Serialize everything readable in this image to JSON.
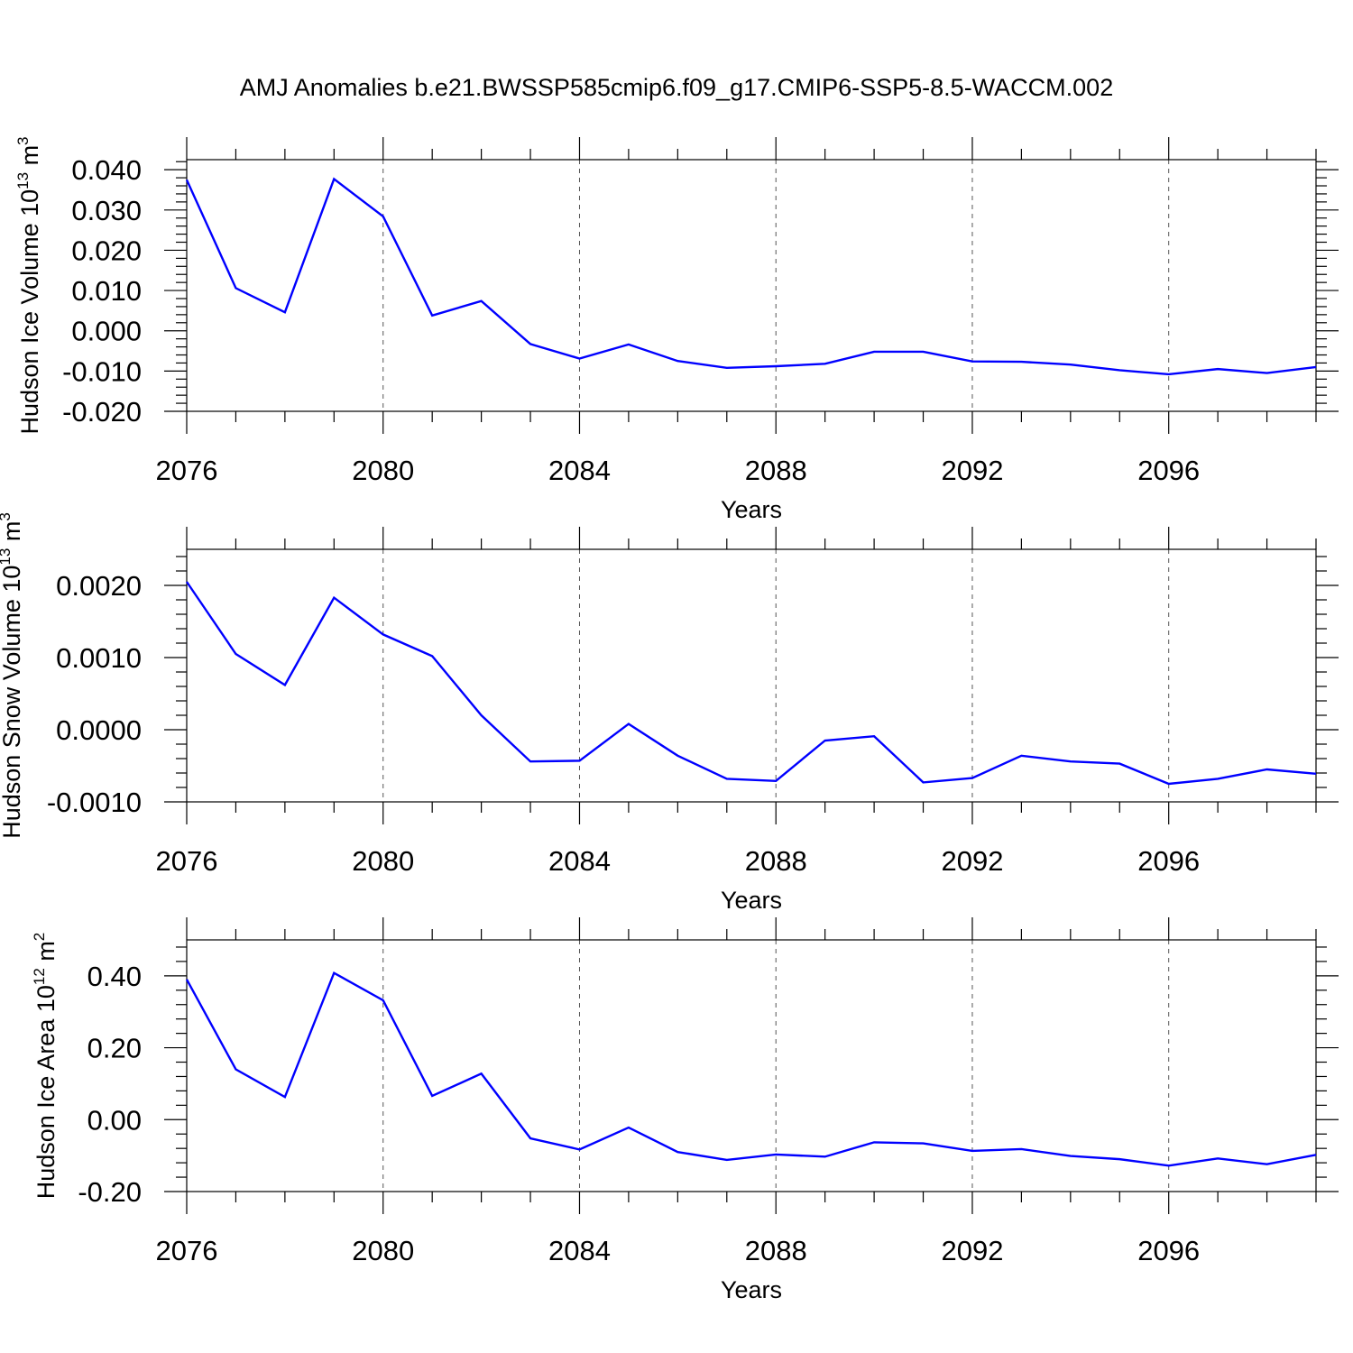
{
  "title": "AMJ Anomalies b.e21.BWSSP585cmip6.f09_g17.CMIP6-SSP5-8.5-WACCM.002",
  "colors": {
    "line": "#0000ff",
    "axis": "#000000",
    "grid": "#555555",
    "background": "#ffffff"
  },
  "chart_data": [
    {
      "type": "line",
      "name": "hudson-ice-volume",
      "ylabel": {
        "prefix": "Hudson Ice Volume 10",
        "exp": "13",
        "unit": " m",
        "unit_exp": "3"
      },
      "xlabel": "Years",
      "xlim": [
        2076,
        2099
      ],
      "ylim": [
        -0.02,
        0.0425
      ],
      "xticks": [
        "2076",
        "2080",
        "2084",
        "2088",
        "2092",
        "2096"
      ],
      "yticks": [
        "0.040",
        "0.030",
        "0.020",
        "0.010",
        "0.000",
        "-0.010",
        "-0.020"
      ],
      "x": [
        2076,
        2077,
        2078,
        2079,
        2080,
        2081,
        2082,
        2083,
        2084,
        2085,
        2086,
        2087,
        2088,
        2089,
        2090,
        2091,
        2092,
        2093,
        2094,
        2095,
        2096,
        2097,
        2098,
        2099
      ],
      "series": [
        {
          "name": "Hudson Ice Volume",
          "values": [
            0.0375,
            0.0106,
            0.0046,
            0.0377,
            0.0284,
            0.0038,
            0.0074,
            -0.0033,
            -0.0069,
            -0.0034,
            -0.0075,
            -0.0092,
            -0.0088,
            -0.0082,
            -0.0052,
            -0.0052,
            -0.0076,
            -0.0077,
            -0.0084,
            -0.0098,
            -0.0108,
            -0.0095,
            -0.0105,
            -0.009
          ]
        }
      ]
    },
    {
      "type": "line",
      "name": "hudson-snow-volume",
      "ylabel": {
        "prefix": "Hudson Snow Volume 10",
        "exp": "13",
        "unit": " m",
        "unit_exp": "3"
      },
      "xlabel": "Years",
      "xlim": [
        2076,
        2099
      ],
      "ylim": [
        -0.001,
        0.0025
      ],
      "xticks": [
        "2076",
        "2080",
        "2084",
        "2088",
        "2092",
        "2096"
      ],
      "yticks": [
        "0.0020",
        "0.0010",
        "0.0000",
        "-0.0010"
      ],
      "x": [
        2076,
        2077,
        2078,
        2079,
        2080,
        2081,
        2082,
        2083,
        2084,
        2085,
        2086,
        2087,
        2088,
        2089,
        2090,
        2091,
        2092,
        2093,
        2094,
        2095,
        2096,
        2097,
        2098,
        2099
      ],
      "series": [
        {
          "name": "Hudson Snow Volume",
          "values": [
            0.00205,
            0.00105,
            0.00062,
            0.00183,
            0.00132,
            0.00102,
            0.0002,
            -0.00044,
            -0.00043,
            8e-05,
            -0.00036,
            -0.00068,
            -0.00071,
            -0.00015,
            -9e-05,
            -0.00073,
            -0.00067,
            -0.00036,
            -0.00044,
            -0.00047,
            -0.00075,
            -0.00068,
            -0.00055,
            -0.00061
          ]
        }
      ]
    },
    {
      "type": "line",
      "name": "hudson-ice-area",
      "ylabel": {
        "prefix": "Hudson Ice Area 10",
        "exp": "12",
        "unit": " m",
        "unit_exp": "2"
      },
      "xlabel": "Years",
      "xlim": [
        2076,
        2099
      ],
      "ylim": [
        -0.2,
        0.5
      ],
      "xticks": [
        "2076",
        "2080",
        "2084",
        "2088",
        "2092",
        "2096"
      ],
      "yticks": [
        "0.40",
        "0.20",
        "0.00",
        "-0.20"
      ],
      "x": [
        2076,
        2077,
        2078,
        2079,
        2080,
        2081,
        2082,
        2083,
        2084,
        2085,
        2086,
        2087,
        2088,
        2089,
        2090,
        2091,
        2092,
        2093,
        2094,
        2095,
        2096,
        2097,
        2098,
        2099
      ],
      "series": [
        {
          "name": "Hudson Ice Area",
          "values": [
            0.39,
            0.14,
            0.063,
            0.408,
            0.332,
            0.066,
            0.128,
            -0.052,
            -0.083,
            -0.022,
            -0.09,
            -0.112,
            -0.097,
            -0.103,
            -0.063,
            -0.066,
            -0.087,
            -0.082,
            -0.101,
            -0.11,
            -0.128,
            -0.108,
            -0.124,
            -0.098
          ]
        }
      ]
    }
  ]
}
